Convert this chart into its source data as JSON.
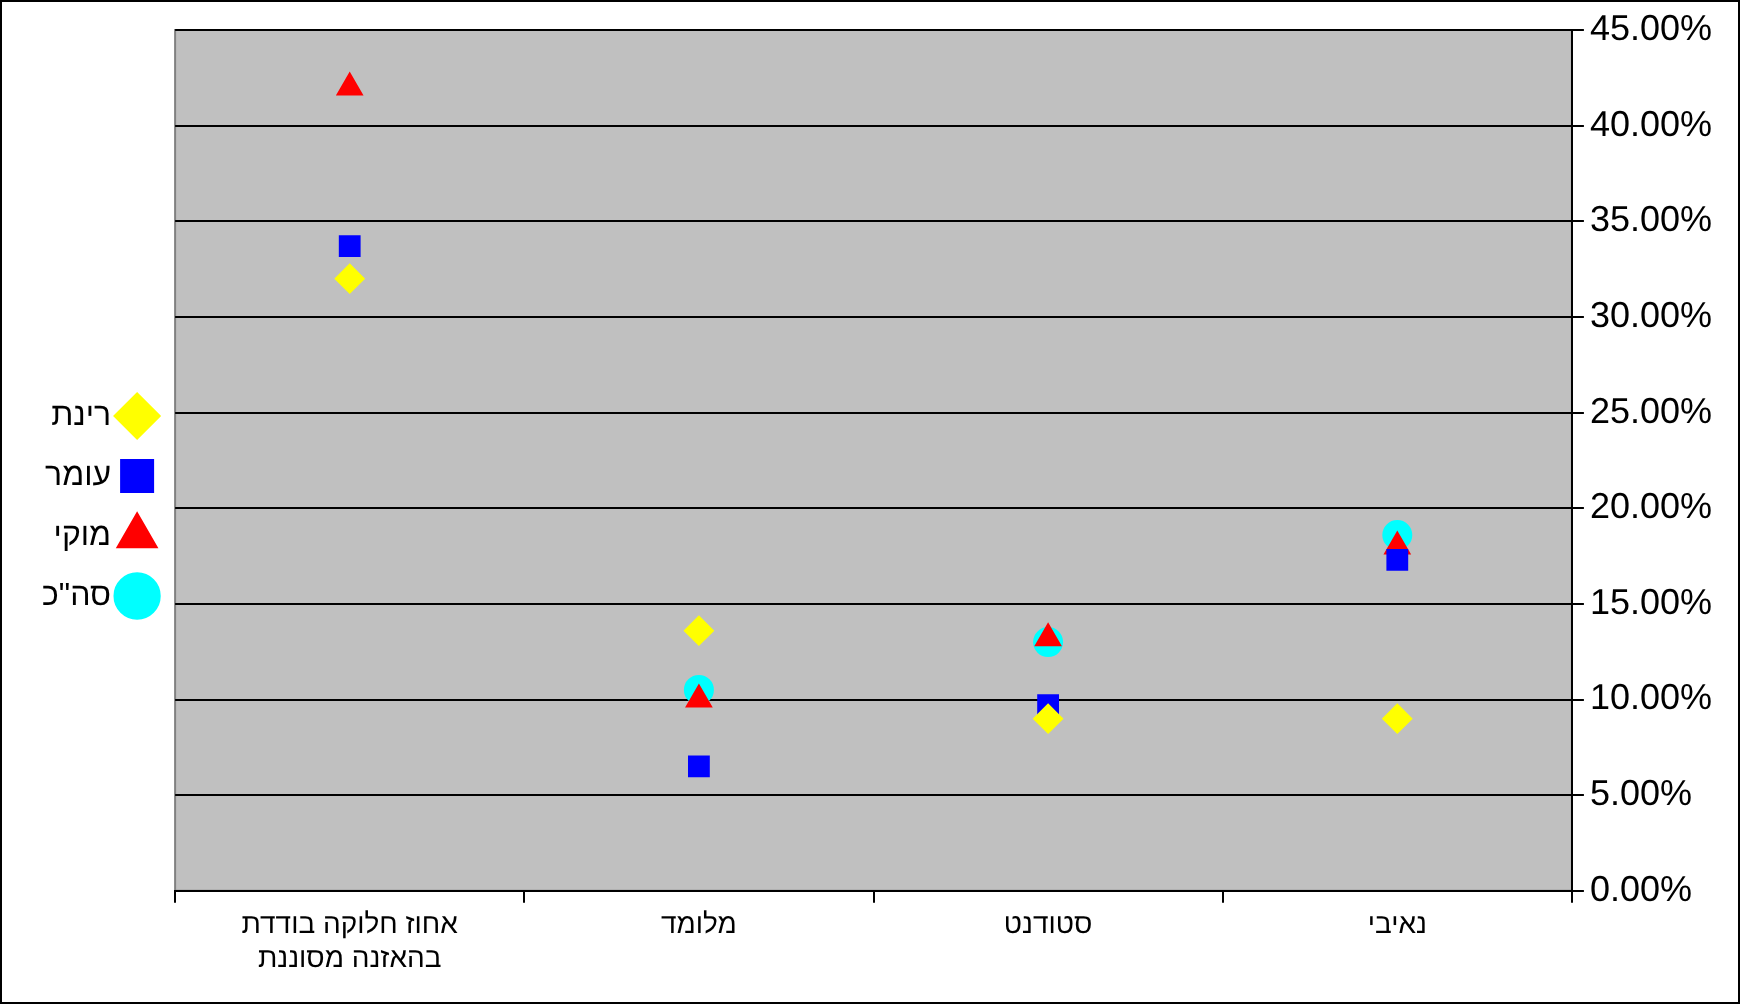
{
  "chart_data": {
    "type": "scatter",
    "categories": [
      "אחוז חלוקה בודדת בהאזנה מסוננת",
      "מלומד",
      "סטודנט",
      "נאיבי"
    ],
    "series": [
      {
        "name": "רינת",
        "color": "#ffff00",
        "marker": "diamond",
        "values": [
          32,
          13.6,
          9,
          9
        ]
      },
      {
        "name": "עומר",
        "color": "#0000ff",
        "marker": "square",
        "values": [
          33.7,
          6.5,
          9.7,
          17.3
        ]
      },
      {
        "name": "מוקי",
        "color": "#ff0000",
        "marker": "triangle",
        "values": [
          42,
          10,
          13.2,
          18
        ]
      },
      {
        "name": "סה\"כ",
        "color": "#00ffff",
        "marker": "circle",
        "values": [
          null,
          10.5,
          13,
          18.6
        ]
      }
    ],
    "ylim": [
      0,
      45
    ],
    "yticks": [
      {
        "value": 0,
        "label": "0.00%"
      },
      {
        "value": 5,
        "label": "5.00%"
      },
      {
        "value": 10,
        "label": "10.00%"
      },
      {
        "value": 15,
        "label": "15.00%"
      },
      {
        "value": 20,
        "label": "20.00%"
      },
      {
        "value": 25,
        "label": "25.00%"
      },
      {
        "value": 30,
        "label": "30.00%"
      },
      {
        "value": 35,
        "label": "35.00%"
      },
      {
        "value": 40,
        "label": "40.00%"
      },
      {
        "value": 45,
        "label": "45.00%"
      }
    ],
    "grid": "y",
    "legend": "left"
  }
}
